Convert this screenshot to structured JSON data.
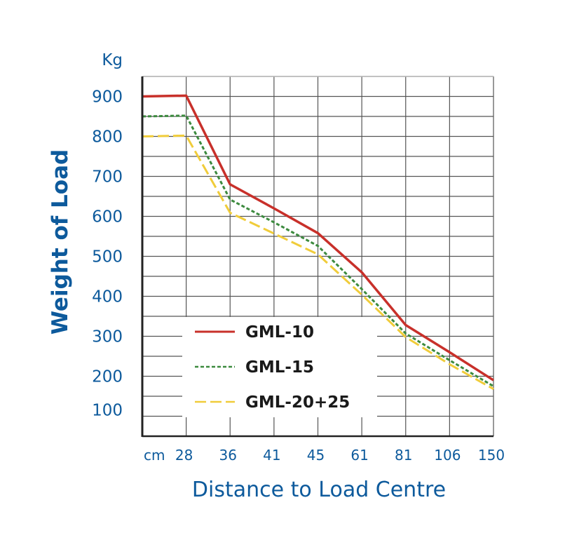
{
  "chart_data": {
    "type": "line",
    "title": "",
    "xlabel": "Distance to Load Centre",
    "ylabel": "Weight of Load",
    "y_unit": "Kg",
    "x_unit": "cm",
    "categories": [
      "0",
      "28",
      "36",
      "41",
      "45",
      "61",
      "81",
      "106",
      "150"
    ],
    "x_tick_labels": [
      "28",
      "36",
      "41",
      "45",
      "61",
      "81",
      "106",
      "150"
    ],
    "y_ticks": [
      100,
      200,
      300,
      400,
      500,
      600,
      700,
      800,
      900
    ],
    "ylim": [
      50,
      950
    ],
    "grid": true,
    "legend_position": "bottom-center",
    "series": [
      {
        "name": "GML-10",
        "color": "#c8302a",
        "style": "solid",
        "values": [
          900,
          902,
          680,
          620,
          558,
          460,
          328,
          260,
          190
        ]
      },
      {
        "name": "GML-15",
        "color": "#3c8a3e",
        "style": "dotted",
        "values": [
          850,
          852,
          642,
          585,
          526,
          418,
          307,
          240,
          175
        ]
      },
      {
        "name": "GML-20+25",
        "color": "#f0cc3a",
        "style": "dashed",
        "values": [
          800,
          802,
          609,
          557,
          505,
          404,
          298,
          230,
          168
        ]
      }
    ],
    "text_color": "#0d5a9c"
  }
}
